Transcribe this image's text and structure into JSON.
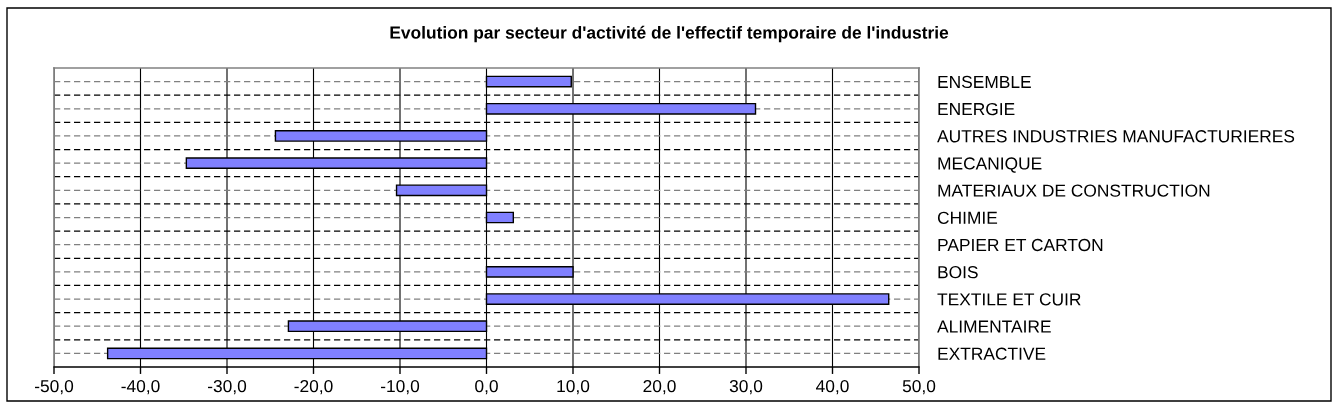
{
  "chart_data": {
    "type": "bar",
    "orientation": "horizontal",
    "title": "Evolution par secteur d'activité de l'effectif temporaire de l'industrie",
    "categories": [
      "ENSEMBLE",
      "ENERGIE",
      "AUTRES INDUSTRIES MANUFACTURIERES",
      "MECANIQUE",
      "MATERIAUX DE CONSTRUCTION",
      "CHIMIE",
      "PAPIER ET CARTON",
      "BOIS",
      "TEXTILE ET CUIR",
      "ALIMENTAIRE",
      "EXTRACTIVE"
    ],
    "values": [
      9.8,
      31.1,
      -24.4,
      -34.7,
      -10.4,
      3.1,
      null,
      10.0,
      46.5,
      -22.9,
      -43.8
    ],
    "color": "#8080ff",
    "xlim": [
      -50,
      50
    ],
    "xticks": [
      {
        "value": -50,
        "label": "-50,0"
      },
      {
        "value": -40,
        "label": "-40,0"
      },
      {
        "value": -30,
        "label": "-30,0"
      },
      {
        "value": -20,
        "label": "-20,0"
      },
      {
        "value": -10,
        "label": "-10,0"
      },
      {
        "value": 0,
        "label": "0,0"
      },
      {
        "value": 10,
        "label": "10,0"
      },
      {
        "value": 20,
        "label": "20,0"
      },
      {
        "value": 30,
        "label": "30,0"
      },
      {
        "value": 40,
        "label": "40,0"
      },
      {
        "value": 50,
        "label": "50,0"
      }
    ],
    "grid": true
  }
}
